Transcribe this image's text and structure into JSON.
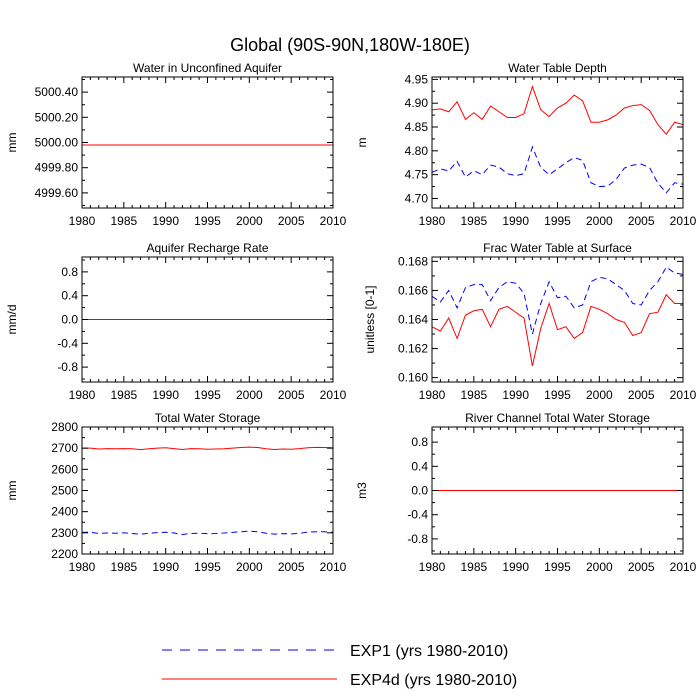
{
  "figure": {
    "title": "Global (90S-90N,180W-180E)",
    "legend": [
      {
        "label": "EXP1 (yrs 1980-2010)",
        "color": "#0000ff",
        "dash": "dashed"
      },
      {
        "label": "EXP4d (yrs 1980-2010)",
        "color": "#ff0000",
        "dash": "solid"
      }
    ]
  },
  "chart_data": [
    {
      "type": "line",
      "title": "Water in Unconfined Aquifer",
      "ylabel": "mm",
      "xlim": [
        1980,
        2010
      ],
      "ylim": [
        4999.48,
        5000.52
      ],
      "xticks": [
        1980,
        1985,
        1990,
        1995,
        2000,
        2005,
        2010
      ],
      "yticks": [
        4999.6,
        4999.8,
        5000.0,
        5000.2,
        5000.4
      ],
      "yticklabels": [
        "4999.60",
        "4999.80",
        "5000.00",
        "5000.20",
        "5000.40"
      ],
      "x": [
        1980,
        2010
      ],
      "series": [
        {
          "name": "EXP1",
          "color": "#0000ff",
          "dash": "dashed",
          "values": [
            4999.98,
            4999.98
          ]
        },
        {
          "name": "EXP4d",
          "color": "#ff0000",
          "dash": "solid",
          "values": [
            4999.98,
            4999.98
          ]
        }
      ]
    },
    {
      "type": "line",
      "title": "Water Table Depth",
      "ylabel": "m",
      "xlim": [
        1980,
        2010
      ],
      "ylim": [
        4.68,
        4.955
      ],
      "xticks": [
        1980,
        1985,
        1990,
        1995,
        2000,
        2005,
        2010
      ],
      "yticks": [
        4.7,
        4.75,
        4.8,
        4.85,
        4.9,
        4.95
      ],
      "yticklabels": [
        "4.70",
        "4.75",
        "4.80",
        "4.85",
        "4.90",
        "4.95"
      ],
      "x": [
        1980,
        1981,
        1982,
        1983,
        1984,
        1985,
        1986,
        1987,
        1988,
        1989,
        1990,
        1991,
        1992,
        1993,
        1994,
        1995,
        1996,
        1997,
        1998,
        1999,
        2000,
        2001,
        2002,
        2003,
        2004,
        2005,
        2006,
        2007,
        2008,
        2009,
        2010
      ],
      "series": [
        {
          "name": "EXP1",
          "color": "#0000ff",
          "dash": "dashed",
          "values": [
            4.755,
            4.762,
            4.758,
            4.778,
            4.745,
            4.758,
            4.75,
            4.77,
            4.766,
            4.752,
            4.748,
            4.752,
            4.808,
            4.765,
            4.75,
            4.762,
            4.775,
            4.786,
            4.78,
            4.733,
            4.725,
            4.726,
            4.74,
            4.764,
            4.77,
            4.772,
            4.765,
            4.732,
            4.712,
            4.733,
            4.73
          ]
        },
        {
          "name": "EXP4d",
          "color": "#ff0000",
          "dash": "solid",
          "values": [
            4.886,
            4.888,
            4.882,
            4.903,
            4.866,
            4.88,
            4.866,
            4.894,
            4.882,
            4.87,
            4.87,
            4.878,
            4.935,
            4.886,
            4.872,
            4.89,
            4.9,
            4.917,
            4.905,
            4.86,
            4.86,
            4.865,
            4.875,
            4.89,
            4.895,
            4.897,
            4.885,
            4.855,
            4.835,
            4.86,
            4.855
          ]
        }
      ]
    },
    {
      "type": "line",
      "title": "Aquifer Recharge Rate",
      "ylabel": "mm/d",
      "xlim": [
        1980,
        2010
      ],
      "ylim": [
        -1.05,
        1.05
      ],
      "xticks": [
        1980,
        1985,
        1990,
        1995,
        2000,
        2005,
        2010
      ],
      "yticks": [
        -0.8,
        -0.4,
        0.0,
        0.4,
        0.8
      ],
      "yticklabels": [
        "-0.8",
        "-0.4",
        "0.0",
        "0.4",
        "0.8"
      ],
      "x": [
        1980,
        2010
      ],
      "series": [
        {
          "name": "EXP1",
          "color": "#0000ff",
          "dash": "dashed",
          "values": [
            0.0,
            0.0
          ]
        },
        {
          "name": "EXP4d",
          "color": "#ff0000",
          "dash": "solid",
          "values": [
            0.0,
            0.0
          ]
        }
      ]
    },
    {
      "type": "line",
      "title": "Frac Water Table at Surface",
      "ylabel": "unitless [0-1]",
      "xlim": [
        1980,
        2010
      ],
      "ylim": [
        0.1597,
        0.1683
      ],
      "xticks": [
        1980,
        1985,
        1990,
        1995,
        2000,
        2005,
        2010
      ],
      "yticks": [
        0.16,
        0.162,
        0.164,
        0.166,
        0.168
      ],
      "yticklabels": [
        "0.160",
        "0.162",
        "0.164",
        "0.166",
        "0.168"
      ],
      "x": [
        1980,
        1981,
        1982,
        1983,
        1984,
        1985,
        1986,
        1987,
        1988,
        1989,
        1990,
        1991,
        1992,
        1993,
        1994,
        1995,
        1996,
        1997,
        1998,
        1999,
        2000,
        2001,
        2002,
        2003,
        2004,
        2005,
        2006,
        2007,
        2008,
        2009,
        2010
      ],
      "series": [
        {
          "name": "EXP1",
          "color": "#0000ff",
          "dash": "dashed",
          "values": [
            0.1656,
            0.1652,
            0.166,
            0.1648,
            0.1662,
            0.1664,
            0.1664,
            0.1653,
            0.1662,
            0.1666,
            0.1665,
            0.1658,
            0.163,
            0.1651,
            0.1666,
            0.1655,
            0.1656,
            0.1648,
            0.165,
            0.1666,
            0.1669,
            0.1668,
            0.1664,
            0.166,
            0.1651,
            0.165,
            0.166,
            0.1666,
            0.1676,
            0.1672,
            0.1671
          ]
        },
        {
          "name": "EXP4d",
          "color": "#ff0000",
          "dash": "solid",
          "values": [
            0.1635,
            0.1632,
            0.1641,
            0.1627,
            0.1643,
            0.1646,
            0.1647,
            0.1635,
            0.1647,
            0.1649,
            0.1645,
            0.1641,
            0.1608,
            0.1634,
            0.1651,
            0.1633,
            0.1635,
            0.1627,
            0.1631,
            0.1649,
            0.1647,
            0.1644,
            0.164,
            0.1638,
            0.1629,
            0.1631,
            0.1644,
            0.1645,
            0.1657,
            0.1651,
            0.1651
          ]
        }
      ]
    },
    {
      "type": "line",
      "title": "Total Water Storage",
      "ylabel": "mm",
      "xlim": [
        1980,
        2010
      ],
      "ylim": [
        2200,
        2800
      ],
      "xticks": [
        1980,
        1985,
        1990,
        1995,
        2000,
        2005,
        2010
      ],
      "yticks": [
        2200,
        2300,
        2400,
        2500,
        2600,
        2700,
        2800
      ],
      "yticklabels": [
        "2200",
        "2300",
        "2400",
        "2500",
        "2600",
        "2700",
        "2800"
      ],
      "x": [
        1980,
        1981,
        1982,
        1983,
        1984,
        1985,
        1986,
        1987,
        1988,
        1989,
        1990,
        1991,
        1992,
        1993,
        1994,
        1995,
        1996,
        1997,
        1998,
        1999,
        2000,
        2001,
        2002,
        2003,
        2004,
        2005,
        2006,
        2007,
        2008,
        2009,
        2010
      ],
      "series": [
        {
          "name": "EXP1",
          "color": "#0000ff",
          "dash": "dashed",
          "values": [
            2302,
            2303,
            2297,
            2299,
            2298,
            2300,
            2297,
            2293,
            2298,
            2301,
            2303,
            2299,
            2292,
            2297,
            2298,
            2296,
            2297,
            2299,
            2302,
            2305,
            2308,
            2305,
            2298,
            2294,
            2296,
            2295,
            2298,
            2303,
            2305,
            2305,
            2303
          ]
        },
        {
          "name": "EXP4d",
          "color": "#ff0000",
          "dash": "solid",
          "values": [
            2700,
            2700,
            2696,
            2698,
            2697,
            2698,
            2697,
            2693,
            2697,
            2700,
            2702,
            2698,
            2694,
            2698,
            2697,
            2695,
            2696,
            2697,
            2700,
            2703,
            2705,
            2703,
            2697,
            2694,
            2696,
            2695,
            2698,
            2702,
            2704,
            2703,
            2702
          ]
        }
      ]
    },
    {
      "type": "line",
      "title": "River Channel Total Water Storage",
      "ylabel": "m3",
      "xlim": [
        1980,
        2010
      ],
      "ylim": [
        -1.05,
        1.05
      ],
      "xticks": [
        1980,
        1985,
        1990,
        1995,
        2000,
        2005,
        2010
      ],
      "yticks": [
        -0.8,
        -0.4,
        0.0,
        0.4,
        0.8
      ],
      "yticklabels": [
        "-0.8",
        "-0.4",
        "0.0",
        "0.4",
        "0.8"
      ],
      "x": [
        1980,
        2010
      ],
      "series": [
        {
          "name": "EXP1",
          "color": "#0000ff",
          "dash": "dashed",
          "values": [
            0.0,
            0.0
          ]
        },
        {
          "name": "EXP4d",
          "color": "#ff0000",
          "dash": "solid",
          "values": [
            0.0,
            0.0
          ]
        }
      ]
    }
  ]
}
